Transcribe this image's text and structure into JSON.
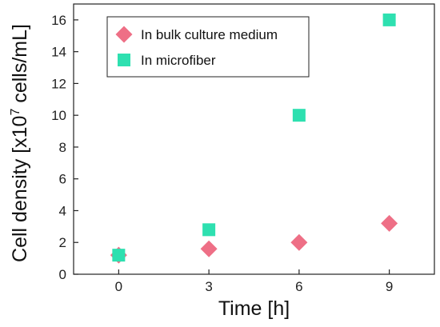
{
  "chart_data": {
    "type": "scatter",
    "x": [
      0,
      3,
      6,
      9
    ],
    "series": [
      {
        "name": "In bulk culture medium",
        "marker": "diamond",
        "color": "#ee6f86",
        "values": [
          1.2,
          1.6,
          2.0,
          3.2
        ]
      },
      {
        "name": "In microfiber",
        "marker": "square",
        "color": "#2ee0b0",
        "values": [
          1.2,
          2.8,
          10.0,
          16.0
        ]
      }
    ],
    "xlabel": "Time [h]",
    "ylabel": {
      "pre": "Cell density [x10",
      "sup": "7",
      "post": " cells/mL]"
    },
    "xlim": [
      -1.5,
      10.5
    ],
    "ylim": [
      0,
      17
    ],
    "xticks": [
      "0",
      "3",
      "6",
      "9"
    ],
    "yticks": [
      "0",
      "2",
      "4",
      "6",
      "8",
      "10",
      "12",
      "14",
      "16"
    ],
    "grid": false,
    "legend_position": "top-left"
  }
}
